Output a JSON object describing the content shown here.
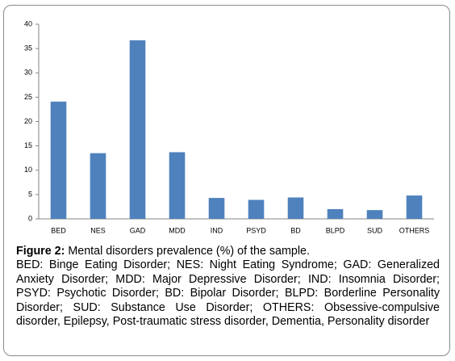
{
  "chart_data": {
    "type": "bar",
    "categories": [
      "BED",
      "NES",
      "GAD",
      "MDD",
      "IND",
      "PSYD",
      "BD",
      "BLPD",
      "SUD",
      "OTHERS"
    ],
    "values": [
      24.1,
      13.5,
      36.7,
      13.7,
      4.3,
      3.9,
      4.4,
      2.0,
      1.8,
      4.8
    ],
    "color": "#4f81bd",
    "ylim": [
      0,
      40
    ],
    "yticks": [
      0,
      5,
      10,
      15,
      20,
      25,
      30,
      35,
      40
    ],
    "grid": false
  },
  "caption": {
    "label": "Figure 2:",
    "title": "Mental disorders prevalence (%) of the sample.",
    "text": "BED: Binge Eating Disorder; NES: Night Eating Syndrome; GAD: Generalized Anxiety Disorder; MDD: Major Depressive Disorder; IND: Insomnia Disorder; PSYD: Psychotic Disorder; BD: Bipolar Disorder; BLPD: Borderline Personality Disorder; SUD: Substance Use Disorder; OTHERS: Obsessive-compulsive disorder, Epilepsy, Post-traumatic stress disorder, Dementia, Personality disorder"
  }
}
